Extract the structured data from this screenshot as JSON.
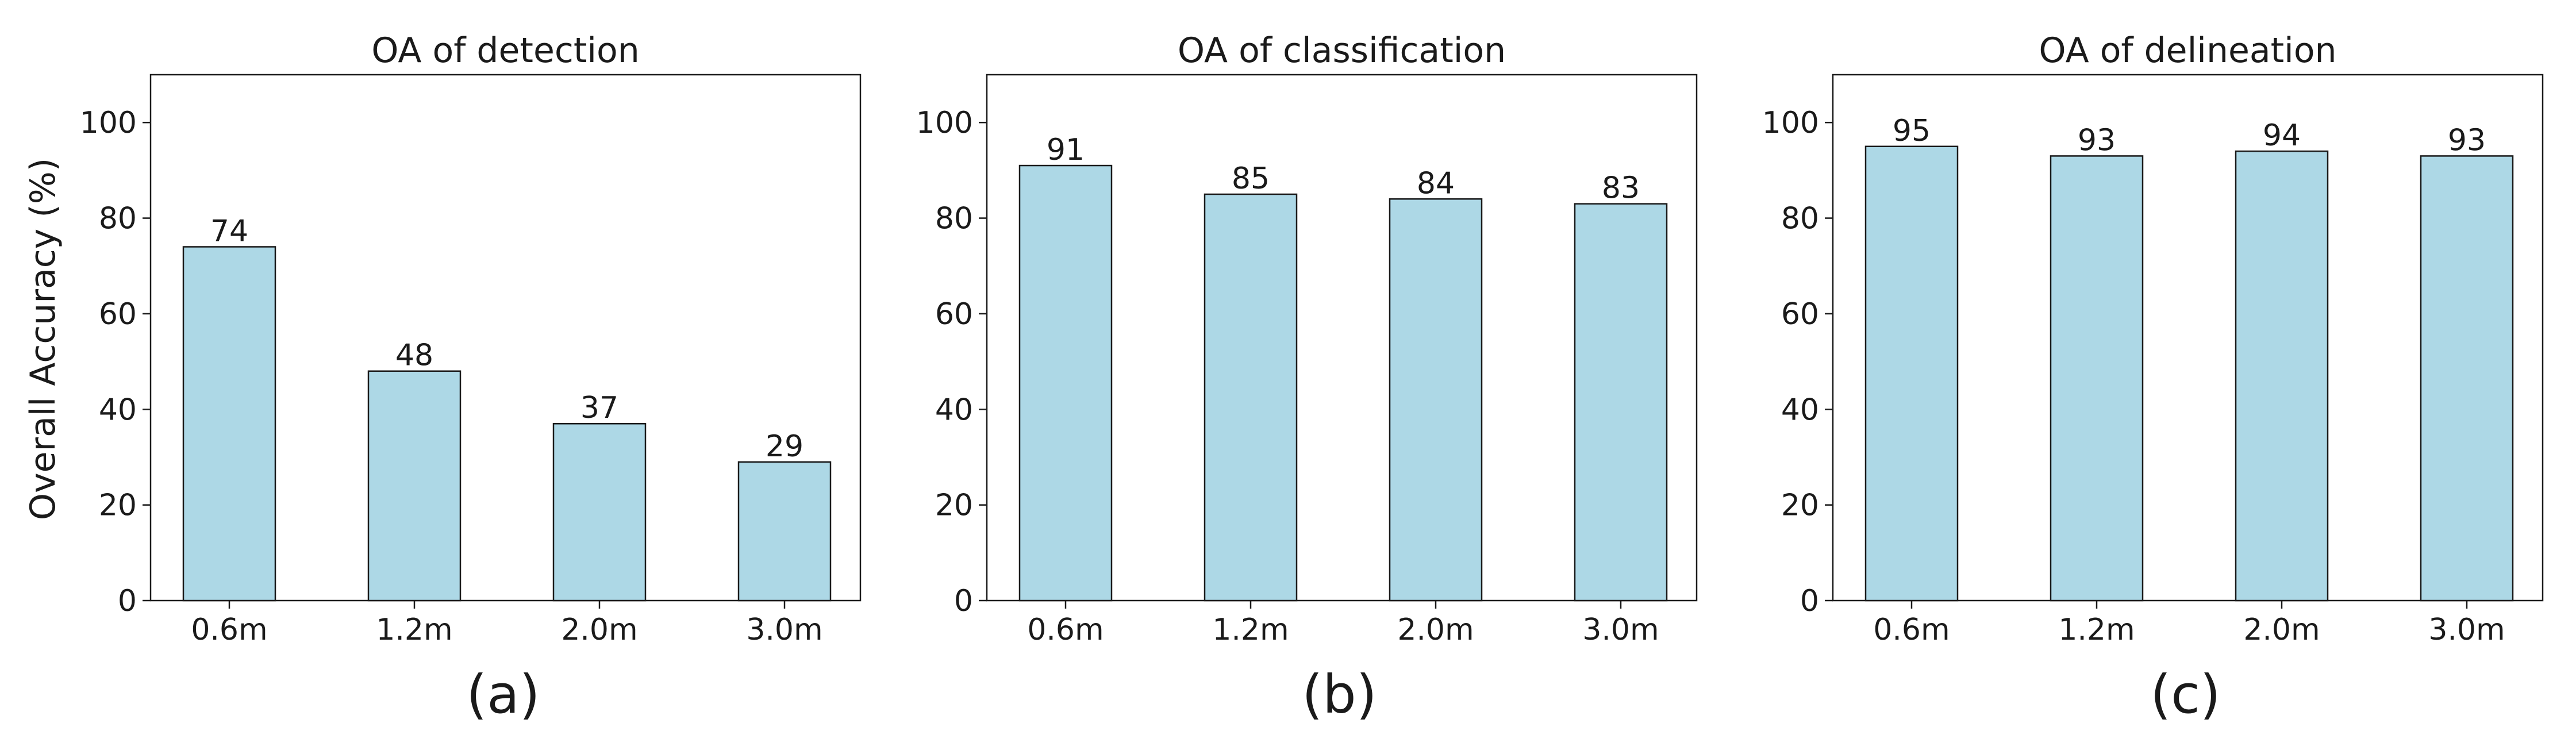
{
  "figure": {
    "ylabel": "Overall Accuracy (%)",
    "bar_color": "#add8e6",
    "edge_color": "#1a1a1a"
  },
  "chart_data": [
    {
      "type": "bar",
      "title": "OA of detection",
      "panel_label": "(a)",
      "categories": [
        "0.6m",
        "1.2m",
        "2.0m",
        "3.0m"
      ],
      "values": [
        74,
        48,
        37,
        29
      ],
      "ylabel": "Overall Accuracy (%)",
      "ylim": [
        0,
        110
      ],
      "yticks": [
        0,
        20,
        40,
        60,
        80,
        100
      ],
      "grid": false
    },
    {
      "type": "bar",
      "title": "OA of classification",
      "panel_label": "(b)",
      "categories": [
        "0.6m",
        "1.2m",
        "2.0m",
        "3.0m"
      ],
      "values": [
        91,
        85,
        84,
        83
      ],
      "ylabel": "",
      "ylim": [
        0,
        110
      ],
      "yticks": [
        0,
        20,
        40,
        60,
        80,
        100
      ],
      "grid": false
    },
    {
      "type": "bar",
      "title": "OA of delineation",
      "panel_label": "(c)",
      "categories": [
        "0.6m",
        "1.2m",
        "2.0m",
        "3.0m"
      ],
      "values": [
        95,
        93,
        94,
        93
      ],
      "ylabel": "",
      "ylim": [
        0,
        110
      ],
      "yticks": [
        0,
        20,
        40,
        60,
        80,
        100
      ],
      "grid": false
    }
  ]
}
